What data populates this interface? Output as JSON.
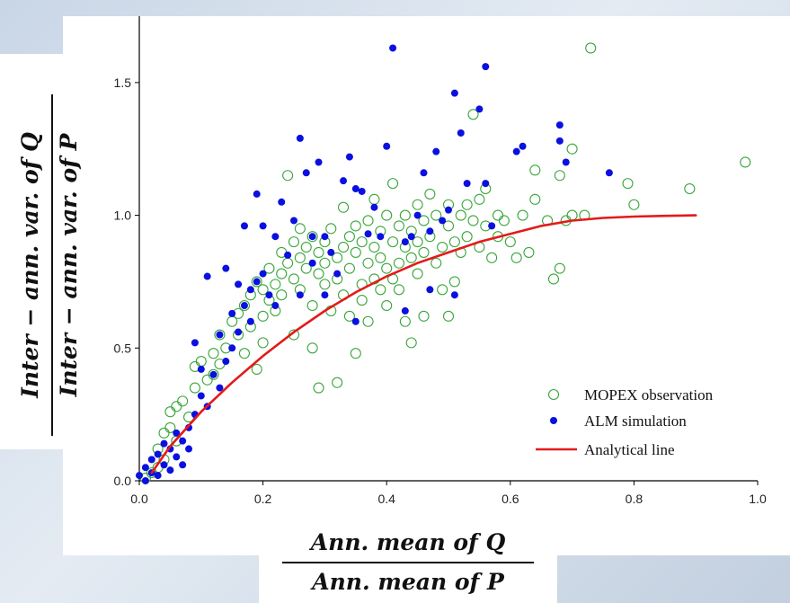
{
  "chart_data": {
    "type": "scatter",
    "xlabel": {
      "numerator": "Ann. mean of Q",
      "denominator": "Ann. mean of P"
    },
    "ylabel": {
      "numerator": "Inter − ann. var. of Q",
      "denominator": "Inter − ann. var. of P"
    },
    "xlim": [
      0.0,
      1.0
    ],
    "ylim": [
      0.0,
      1.75
    ],
    "xticks": [
      "0.0",
      "0.2",
      "0.4",
      "0.6",
      "0.8",
      "1.0"
    ],
    "yticks": [
      "0.0",
      "0.5",
      "1.0",
      "1.5"
    ],
    "grid": false,
    "legend_position": "bottom-right",
    "series": [
      {
        "name": "MOPEX observation",
        "marker": "open-circle",
        "color": "#3aa63a",
        "points": [
          [
            0.01,
            0.01
          ],
          [
            0.02,
            0.03
          ],
          [
            0.03,
            0.05
          ],
          [
            0.03,
            0.12
          ],
          [
            0.04,
            0.08
          ],
          [
            0.04,
            0.18
          ],
          [
            0.05,
            0.2
          ],
          [
            0.05,
            0.26
          ],
          [
            0.06,
            0.28
          ],
          [
            0.06,
            0.15
          ],
          [
            0.07,
            0.3
          ],
          [
            0.08,
            0.24
          ],
          [
            0.09,
            0.35
          ],
          [
            0.09,
            0.43
          ],
          [
            0.1,
            0.45
          ],
          [
            0.11,
            0.38
          ],
          [
            0.12,
            0.4
          ],
          [
            0.12,
            0.48
          ],
          [
            0.13,
            0.44
          ],
          [
            0.13,
            0.55
          ],
          [
            0.14,
            0.5
          ],
          [
            0.15,
            0.6
          ],
          [
            0.16,
            0.55
          ],
          [
            0.16,
            0.63
          ],
          [
            0.17,
            0.48
          ],
          [
            0.17,
            0.66
          ],
          [
            0.18,
            0.58
          ],
          [
            0.18,
            0.7
          ],
          [
            0.19,
            0.42
          ],
          [
            0.19,
            0.75
          ],
          [
            0.2,
            0.62
          ],
          [
            0.2,
            0.72
          ],
          [
            0.2,
            0.52
          ],
          [
            0.21,
            0.68
          ],
          [
            0.21,
            0.8
          ],
          [
            0.22,
            0.74
          ],
          [
            0.22,
            0.64
          ],
          [
            0.23,
            0.78
          ],
          [
            0.23,
            0.86
          ],
          [
            0.23,
            0.7
          ],
          [
            0.24,
            1.15
          ],
          [
            0.24,
            0.82
          ],
          [
            0.25,
            0.76
          ],
          [
            0.25,
            0.9
          ],
          [
            0.25,
            0.55
          ],
          [
            0.26,
            0.95
          ],
          [
            0.26,
            0.84
          ],
          [
            0.26,
            0.72
          ],
          [
            0.27,
            0.8
          ],
          [
            0.27,
            0.88
          ],
          [
            0.28,
            0.5
          ],
          [
            0.28,
            0.92
          ],
          [
            0.28,
            0.66
          ],
          [
            0.29,
            0.35
          ],
          [
            0.29,
            0.78
          ],
          [
            0.29,
            0.86
          ],
          [
            0.3,
            0.9
          ],
          [
            0.3,
            0.74
          ],
          [
            0.3,
            0.82
          ],
          [
            0.31,
            0.64
          ],
          [
            0.31,
            0.95
          ],
          [
            0.32,
            0.37
          ],
          [
            0.32,
            0.84
          ],
          [
            0.32,
            0.76
          ],
          [
            0.33,
            1.03
          ],
          [
            0.33,
            0.88
          ],
          [
            0.33,
            0.7
          ],
          [
            0.34,
            0.92
          ],
          [
            0.34,
            0.8
          ],
          [
            0.34,
            0.62
          ],
          [
            0.35,
            0.48
          ],
          [
            0.35,
            0.86
          ],
          [
            0.35,
            0.96
          ],
          [
            0.36,
            0.74
          ],
          [
            0.36,
            0.9
          ],
          [
            0.36,
            0.68
          ],
          [
            0.37,
            0.82
          ],
          [
            0.37,
            0.98
          ],
          [
            0.37,
            0.6
          ],
          [
            0.38,
            0.76
          ],
          [
            0.38,
            0.88
          ],
          [
            0.38,
            1.06
          ],
          [
            0.39,
            0.72
          ],
          [
            0.39,
            0.94
          ],
          [
            0.39,
            0.84
          ],
          [
            0.4,
            0.8
          ],
          [
            0.4,
            1.0
          ],
          [
            0.4,
            0.66
          ],
          [
            0.41,
            0.9
          ],
          [
            0.41,
            0.76
          ],
          [
            0.41,
            1.12
          ],
          [
            0.42,
            0.96
          ],
          [
            0.42,
            0.82
          ],
          [
            0.42,
            0.72
          ],
          [
            0.43,
            0.88
          ],
          [
            0.43,
            1.0
          ],
          [
            0.43,
            0.6
          ],
          [
            0.44,
            0.84
          ],
          [
            0.44,
            0.52
          ],
          [
            0.44,
            0.94
          ],
          [
            0.45,
            1.04
          ],
          [
            0.45,
            0.78
          ],
          [
            0.45,
            0.9
          ],
          [
            0.46,
            0.98
          ],
          [
            0.46,
            0.86
          ],
          [
            0.46,
            0.62
          ],
          [
            0.47,
            1.08
          ],
          [
            0.47,
            0.92
          ],
          [
            0.48,
            0.82
          ],
          [
            0.48,
            1.0
          ],
          [
            0.49,
            0.88
          ],
          [
            0.49,
            0.72
          ],
          [
            0.5,
            0.96
          ],
          [
            0.5,
            1.04
          ],
          [
            0.5,
            0.62
          ],
          [
            0.51,
            0.9
          ],
          [
            0.51,
            0.75
          ],
          [
            0.52,
            1.0
          ],
          [
            0.52,
            0.86
          ],
          [
            0.53,
            1.04
          ],
          [
            0.53,
            0.92
          ],
          [
            0.54,
            0.98
          ],
          [
            0.54,
            1.38
          ],
          [
            0.55,
            1.06
          ],
          [
            0.55,
            0.88
          ],
          [
            0.56,
            0.96
          ],
          [
            0.56,
            1.1
          ],
          [
            0.57,
            0.84
          ],
          [
            0.58,
            1.0
          ],
          [
            0.58,
            0.92
          ],
          [
            0.59,
            0.98
          ],
          [
            0.6,
            0.9
          ],
          [
            0.61,
            0.84
          ],
          [
            0.62,
            1.0
          ],
          [
            0.63,
            0.86
          ],
          [
            0.64,
            1.06
          ],
          [
            0.64,
            1.17
          ],
          [
            0.66,
            0.98
          ],
          [
            0.67,
            0.76
          ],
          [
            0.68,
            0.8
          ],
          [
            0.68,
            1.15
          ],
          [
            0.69,
            0.98
          ],
          [
            0.7,
            1.25
          ],
          [
            0.7,
            1.0
          ],
          [
            0.72,
            1.0
          ],
          [
            0.73,
            1.63
          ],
          [
            0.79,
            1.12
          ],
          [
            0.8,
            1.04
          ],
          [
            0.89,
            1.1
          ],
          [
            0.98,
            1.2
          ]
        ]
      },
      {
        "name": "ALM simulation",
        "marker": "filled-circle",
        "color": "#0a10e0",
        "points": [
          [
            0.0,
            0.02
          ],
          [
            0.01,
            0.0
          ],
          [
            0.01,
            0.05
          ],
          [
            0.02,
            0.08
          ],
          [
            0.02,
            0.03
          ],
          [
            0.03,
            0.1
          ],
          [
            0.03,
            0.02
          ],
          [
            0.04,
            0.06
          ],
          [
            0.04,
            0.14
          ],
          [
            0.05,
            0.12
          ],
          [
            0.05,
            0.04
          ],
          [
            0.06,
            0.18
          ],
          [
            0.06,
            0.09
          ],
          [
            0.07,
            0.15
          ],
          [
            0.07,
            0.06
          ],
          [
            0.08,
            0.12
          ],
          [
            0.08,
            0.2
          ],
          [
            0.09,
            0.25
          ],
          [
            0.09,
            0.52
          ],
          [
            0.1,
            0.42
          ],
          [
            0.1,
            0.32
          ],
          [
            0.11,
            0.28
          ],
          [
            0.11,
            0.77
          ],
          [
            0.12,
            0.4
          ],
          [
            0.13,
            0.55
          ],
          [
            0.13,
            0.35
          ],
          [
            0.14,
            0.8
          ],
          [
            0.14,
            0.45
          ],
          [
            0.15,
            0.5
          ],
          [
            0.15,
            0.63
          ],
          [
            0.16,
            0.74
          ],
          [
            0.16,
            0.56
          ],
          [
            0.17,
            0.96
          ],
          [
            0.17,
            0.66
          ],
          [
            0.18,
            0.72
          ],
          [
            0.18,
            0.6
          ],
          [
            0.19,
            1.08
          ],
          [
            0.19,
            0.75
          ],
          [
            0.2,
            0.96
          ],
          [
            0.2,
            0.78
          ],
          [
            0.21,
            0.7
          ],
          [
            0.22,
            0.92
          ],
          [
            0.22,
            0.66
          ],
          [
            0.23,
            1.05
          ],
          [
            0.24,
            0.85
          ],
          [
            0.25,
            0.98
          ],
          [
            0.26,
            1.29
          ],
          [
            0.26,
            0.7
          ],
          [
            0.27,
            1.16
          ],
          [
            0.28,
            0.92
          ],
          [
            0.28,
            0.82
          ],
          [
            0.29,
            1.2
          ],
          [
            0.3,
            0.92
          ],
          [
            0.31,
            0.86
          ],
          [
            0.32,
            0.78
          ],
          [
            0.33,
            1.13
          ],
          [
            0.34,
            1.22
          ],
          [
            0.35,
            0.6
          ],
          [
            0.35,
            1.1
          ],
          [
            0.36,
            1.09
          ],
          [
            0.37,
            0.93
          ],
          [
            0.38,
            1.03
          ],
          [
            0.39,
            0.92
          ],
          [
            0.4,
            1.26
          ],
          [
            0.41,
            1.63
          ],
          [
            0.43,
            0.9
          ],
          [
            0.44,
            0.92
          ],
          [
            0.45,
            1.0
          ],
          [
            0.46,
            1.16
          ],
          [
            0.47,
            0.72
          ],
          [
            0.48,
            1.24
          ],
          [
            0.49,
            0.98
          ],
          [
            0.5,
            1.02
          ],
          [
            0.51,
            1.46
          ],
          [
            0.52,
            1.31
          ],
          [
            0.53,
            1.12
          ],
          [
            0.55,
            1.4
          ],
          [
            0.56,
            1.56
          ],
          [
            0.56,
            1.12
          ],
          [
            0.61,
            1.24
          ],
          [
            0.62,
            1.26
          ],
          [
            0.68,
            1.34
          ],
          [
            0.68,
            1.28
          ],
          [
            0.69,
            1.2
          ],
          [
            0.76,
            1.16
          ],
          [
            0.57,
            0.96
          ],
          [
            0.43,
            0.64
          ],
          [
            0.51,
            0.7
          ],
          [
            0.47,
            0.94
          ],
          [
            0.3,
            0.7
          ]
        ]
      },
      {
        "name": "Analytical line",
        "marker": "line",
        "color": "#e41a1a",
        "points": [
          [
            0.02,
            0.03
          ],
          [
            0.05,
            0.13
          ],
          [
            0.1,
            0.26
          ],
          [
            0.15,
            0.37
          ],
          [
            0.2,
            0.47
          ],
          [
            0.25,
            0.56
          ],
          [
            0.3,
            0.64
          ],
          [
            0.35,
            0.71
          ],
          [
            0.4,
            0.77
          ],
          [
            0.45,
            0.82
          ],
          [
            0.5,
            0.86
          ],
          [
            0.55,
            0.9
          ],
          [
            0.6,
            0.93
          ],
          [
            0.65,
            0.96
          ],
          [
            0.7,
            0.98
          ],
          [
            0.75,
            0.99
          ],
          [
            0.8,
            0.995
          ],
          [
            0.85,
            0.998
          ],
          [
            0.9,
            1.0
          ]
        ]
      }
    ]
  }
}
